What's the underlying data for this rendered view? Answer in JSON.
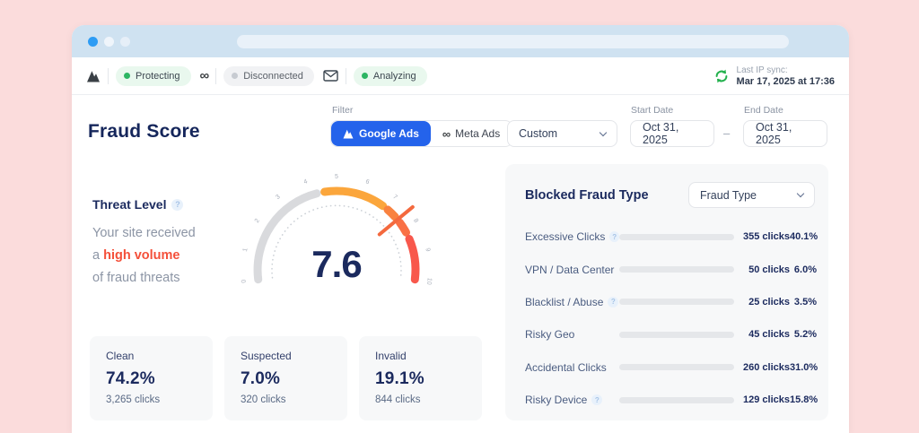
{
  "header": {
    "connections": [
      {
        "icon": "brand-a-icon",
        "label": "Protecting",
        "status": "green"
      },
      {
        "icon": "meta-icon",
        "label": "Disconnected",
        "status": "gray"
      },
      {
        "icon": "mail-icon",
        "label": "Analyzing",
        "status": "green"
      }
    ],
    "sync": {
      "label": "Last IP sync:",
      "value": "Mar 17, 2025 at 17:36"
    }
  },
  "toolbar": {
    "title": "Fraud Score",
    "filter_label": "Filter",
    "platform_toggle": [
      {
        "label": "Google Ads",
        "selected": true
      },
      {
        "label": "Meta Ads",
        "selected": false
      }
    ],
    "range_select_value": "Custom",
    "start_date": {
      "label": "Start Date",
      "value": "Oct 31, 2025"
    },
    "date_separator": "–",
    "end_date": {
      "label": "End Date",
      "value": "Oct 31, 2025"
    }
  },
  "threat": {
    "title": "Threat Level",
    "line1": "Your site received",
    "line2_prefix": "a ",
    "line2_highlight": "high volume",
    "line3": "of fraud threats"
  },
  "gauge_value_label": "7.6",
  "stats": [
    {
      "label": "Clean",
      "value": "74.2%",
      "sub": "3,265 clicks"
    },
    {
      "label": "Suspected",
      "value": "7.0%",
      "sub": "320 clicks"
    },
    {
      "label": "Invalid",
      "value": "19.1%",
      "sub": "844 clicks"
    }
  ],
  "fraud_panel": {
    "title": "Blocked Fraud Type",
    "select_value": "Fraud Type",
    "rows": [
      {
        "label": "Excessive Clicks",
        "has_help": true,
        "clicks": "355 clicks",
        "pct": "40.1%",
        "bar_pct": 49
      },
      {
        "label": "VPN / Data Center",
        "has_help": false,
        "clicks": "50 clicks",
        "pct": "6.0%",
        "bar_pct": 9.5
      },
      {
        "label": "Blacklist / Abuse",
        "has_help": true,
        "clicks": "25 clicks",
        "pct": "3.5%",
        "bar_pct": 4
      },
      {
        "label": "Risky Geo",
        "has_help": false,
        "clicks": "45 clicks",
        "pct": "5.2%",
        "bar_pct": 5
      },
      {
        "label": "Accidental Clicks",
        "has_help": false,
        "clicks": "260 clicks",
        "pct": "31.0%",
        "bar_pct": 40.5
      },
      {
        "label": "Risky Device",
        "has_help": true,
        "clicks": "129 clicks",
        "pct": "15.8%",
        "bar_pct": 22
      }
    ]
  },
  "chart_data": [
    {
      "type": "gauge",
      "title": "Fraud Score",
      "value": 7.6,
      "min": 0,
      "max": 10,
      "tick_labels": [
        "0",
        "1",
        "2",
        "3",
        "4",
        "5",
        "6",
        "7",
        "8",
        "9",
        "10"
      ],
      "segments": [
        {
          "from": 0,
          "to": 4.25,
          "color": "#D9DADD"
        },
        {
          "from": 4.55,
          "to": 6.85,
          "color": "#FBA63C"
        },
        {
          "from": 7.08,
          "to": 7.46,
          "color": "#F9823F"
        },
        {
          "from": 7.74,
          "to": 8.18,
          "color": "#F97045"
        },
        {
          "from": 8.45,
          "to": 10,
          "color": "#F8584C"
        }
      ],
      "needle_color": "#F4693E",
      "value_color": "#1B2A5E"
    },
    {
      "type": "bar",
      "title": "Blocked Fraud Type",
      "categories": [
        "Excessive Clicks",
        "VPN / Data Center",
        "Blacklist / Abuse",
        "Risky Geo",
        "Accidental Clicks",
        "Risky Device"
      ],
      "series": [
        {
          "name": "clicks",
          "values": [
            355,
            50,
            25,
            45,
            260,
            129
          ]
        },
        {
          "name": "percent",
          "values": [
            40.1,
            6.0,
            3.5,
            5.2,
            31.0,
            15.8
          ]
        }
      ],
      "bar_color": "#F8594B",
      "track_color": "#E5E7EA",
      "legend": false,
      "orientation": "horizontal"
    }
  ],
  "colors": {
    "page_bg": "#FBDCDC",
    "chrome_bg": "#CFE2F1",
    "accent_blue": "#2463EB",
    "navy": "#1B2A5E",
    "red": "#F4503A",
    "green": "#2DB563"
  }
}
